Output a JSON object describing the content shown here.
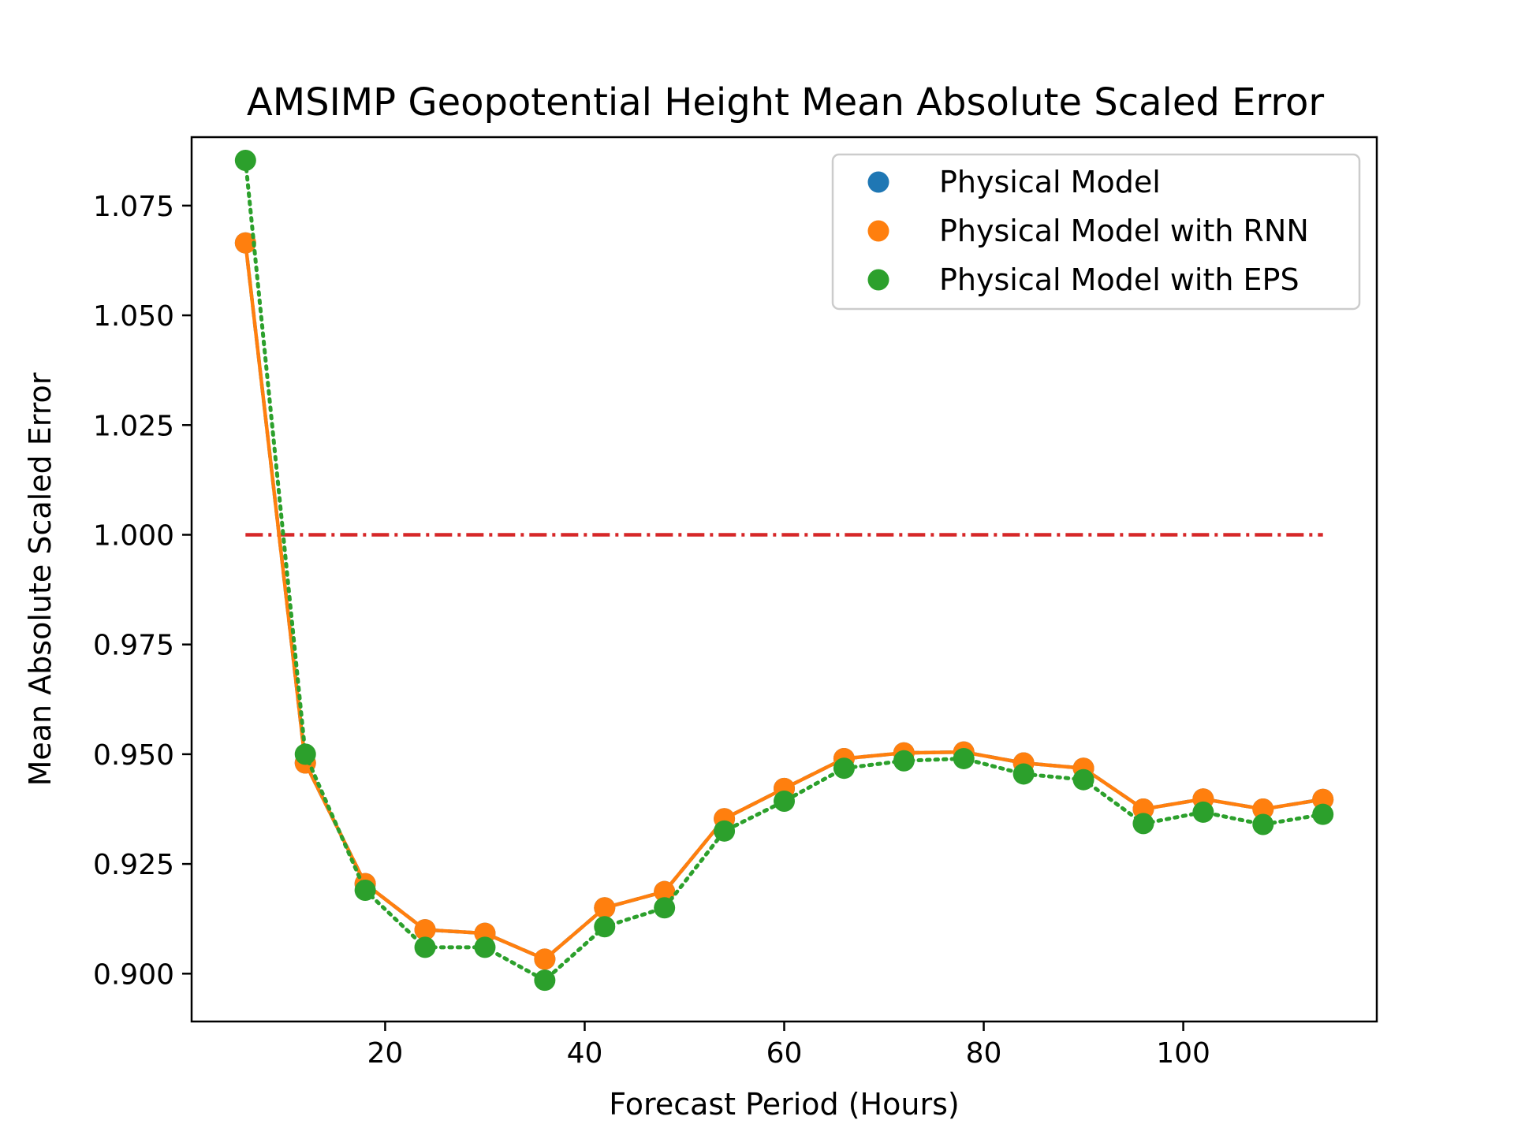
{
  "chart_data": {
    "type": "line",
    "title": "AMSIMP Geopotential Height Mean Absolute Scaled Error",
    "xlabel": "Forecast Period (Hours)",
    "ylabel": "Mean Absolute Scaled Error",
    "xlim": [
      0.6,
      119.4
    ],
    "ylim": [
      0.8891,
      1.0906
    ],
    "x_ticks": [
      20,
      40,
      60,
      80,
      100
    ],
    "y_ticks": [
      0.9,
      0.925,
      0.95,
      0.975,
      1.0,
      1.025,
      1.05,
      1.075
    ],
    "y_tick_labels": [
      "0.900",
      "0.925",
      "0.950",
      "0.975",
      "1.000",
      "1.025",
      "1.050",
      "1.075"
    ],
    "grid": false,
    "legend_position": "top-right",
    "x": [
      6,
      12,
      18,
      24,
      30,
      36,
      42,
      48,
      54,
      60,
      66,
      72,
      78,
      84,
      90,
      96,
      102,
      108,
      114
    ],
    "series": [
      {
        "name": "Physical Model",
        "color": "#1f77b4",
        "line_style": "dashed",
        "values": [
          1.0665,
          0.948,
          0.9205,
          0.91,
          0.9092,
          0.9033,
          0.915,
          0.9187,
          0.9353,
          0.9422,
          0.949,
          0.9503,
          0.9505,
          0.948,
          0.9468,
          0.9375,
          0.9398,
          0.9375,
          0.9397
        ]
      },
      {
        "name": "Physical Model with RNN",
        "color": "#ff7f0e",
        "line_style": "solid",
        "values": [
          1.0665,
          0.948,
          0.9205,
          0.91,
          0.9092,
          0.9033,
          0.915,
          0.9187,
          0.9353,
          0.9422,
          0.949,
          0.9503,
          0.9505,
          0.948,
          0.9468,
          0.9375,
          0.9398,
          0.9375,
          0.9397
        ]
      },
      {
        "name": "Physical Model with EPS",
        "color": "#2ca02c",
        "line_style": "dotted",
        "values": [
          1.0853,
          0.95,
          0.919,
          0.906,
          0.906,
          0.8985,
          0.9107,
          0.915,
          0.9325,
          0.9393,
          0.9468,
          0.9485,
          0.949,
          0.9455,
          0.9442,
          0.9342,
          0.9368,
          0.934,
          0.9363
        ]
      }
    ],
    "reference_line": {
      "y": 1.0,
      "x_range": [
        6,
        114
      ],
      "color": "#d62728",
      "line_style": "dashdot"
    }
  }
}
